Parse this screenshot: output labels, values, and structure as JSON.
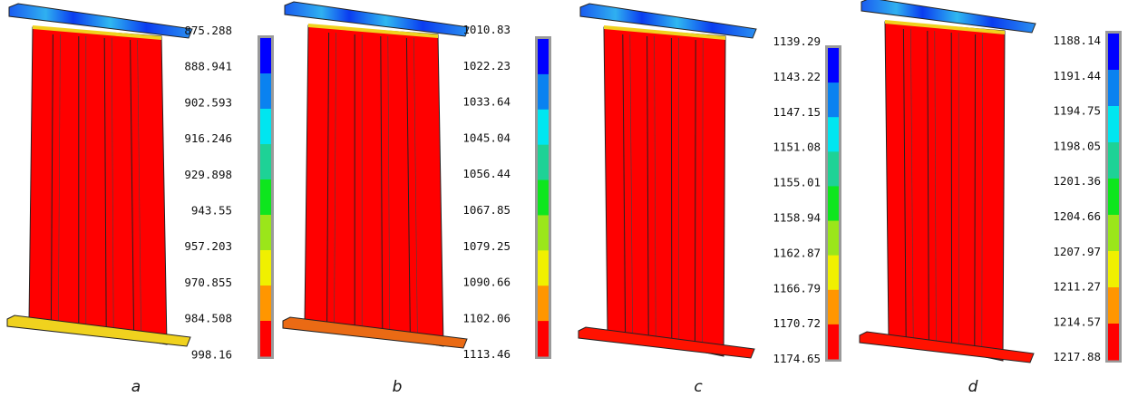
{
  "colorscale": [
    "#0000ff",
    "#0a82f0",
    "#00e6f0",
    "#1ed296",
    "#0ee61e",
    "#9be61a",
    "#f0f000",
    "#ff9600",
    "#ff0000"
  ],
  "panels": [
    {
      "caption": "a",
      "top_flange": "blue",
      "bottom_flange": "yellow",
      "ticks": [
        "875.288",
        "888.941",
        "902.593",
        "916.246",
        "929.898",
        "943.55",
        "957.203",
        "970.855",
        "984.508",
        "998.16"
      ]
    },
    {
      "caption": "b",
      "top_flange": "blue",
      "bottom_flange": "orange",
      "ticks": [
        "1010.83",
        "1022.23",
        "1033.64",
        "1045.04",
        "1056.44",
        "1067.85",
        "1079.25",
        "1090.66",
        "1102.06",
        "1113.46"
      ]
    },
    {
      "caption": "c",
      "top_flange": "blue",
      "bottom_flange": "red",
      "ticks": [
        "1139.29",
        "1143.22",
        "1147.15",
        "1151.08",
        "1155.01",
        "1158.94",
        "1162.87",
        "1166.79",
        "1170.72",
        "1174.65"
      ]
    },
    {
      "caption": "d",
      "top_flange": "blue",
      "bottom_flange": "red",
      "ticks": [
        "1188.14",
        "1191.44",
        "1194.75",
        "1198.05",
        "1201.36",
        "1204.66",
        "1207.97",
        "1211.27",
        "1214.57",
        "1217.88"
      ]
    }
  ]
}
